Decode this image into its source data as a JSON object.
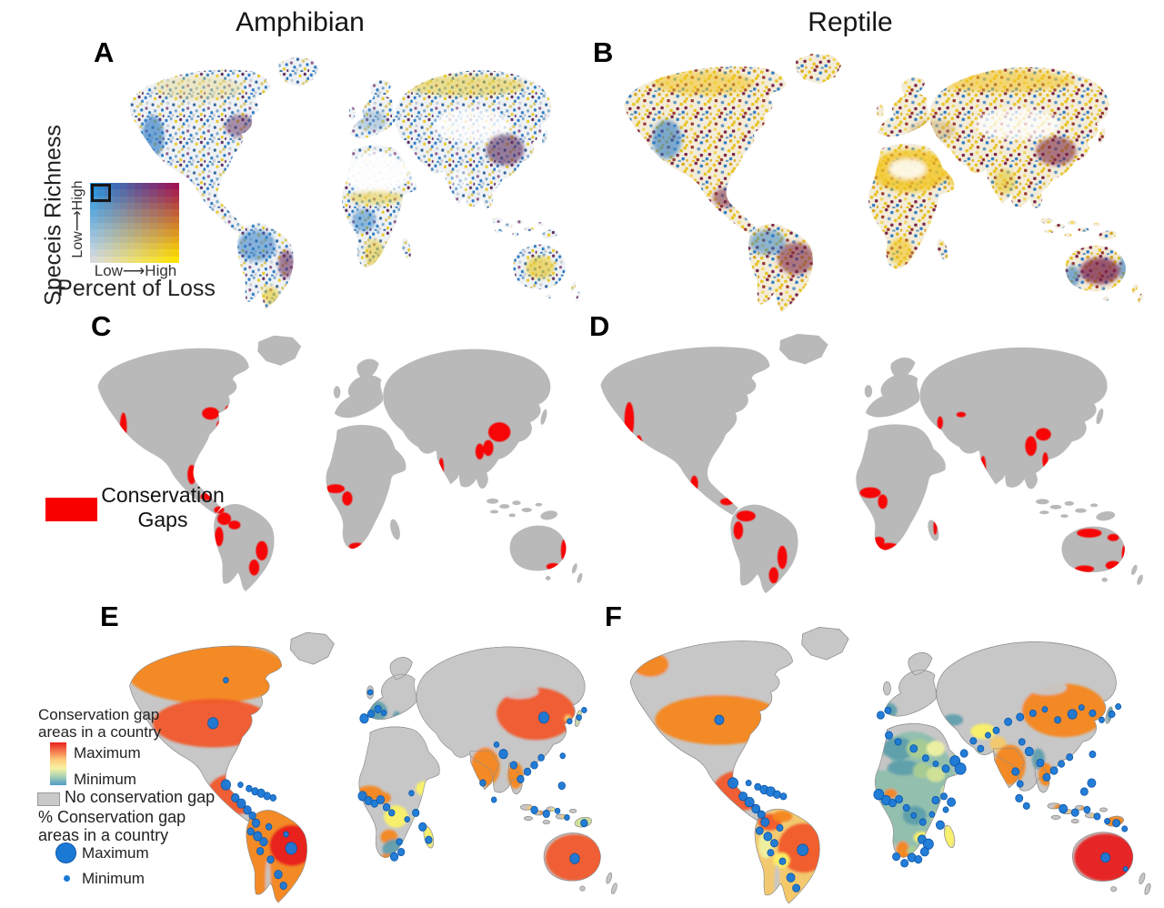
{
  "figure": {
    "columns": [
      {
        "title": "Amphibian"
      },
      {
        "title": "Reptile"
      }
    ],
    "panels": [
      {
        "letter": "A",
        "subject": "Amphibian",
        "content": "species richness vs percent of loss bivariate map"
      },
      {
        "letter": "B",
        "subject": "Reptile",
        "content": "species richness vs percent of loss bivariate map"
      },
      {
        "letter": "C",
        "subject": "Amphibian",
        "content": "conservation gaps map"
      },
      {
        "letter": "D",
        "subject": "Reptile",
        "content": "conservation gaps map"
      },
      {
        "letter": "E",
        "subject": "Amphibian",
        "content": "conservation gap areas by country with % bubbles"
      },
      {
        "letter": "F",
        "subject": "Reptile",
        "content": "conservation gap areas by country with % bubbles"
      }
    ]
  },
  "bivariate_legend": {
    "y_axis_label": "Speceis Richness",
    "y_scale_label": "Low⟶High",
    "x_scale_label": "Low⟶High",
    "x_axis_label": "Percent of Loss",
    "grid_size": 12,
    "corner_colors": {
      "top_left": "#1F8ED8",
      "top_right": "#9E1455",
      "bottom_left": "#D8DBDE",
      "bottom_right": "#FFE205"
    }
  },
  "gap_legend": {
    "line1": "Conservation",
    "line2": "Gaps",
    "swatch_color": "#F80000"
  },
  "country_gap_legend": {
    "line1": "Conservation gap",
    "line2": "areas in a country",
    "max_label": "Maximum",
    "min_label": "Minimum",
    "gradient_stops": [
      "#E8201D",
      "#F4764A",
      "#FDC878",
      "#F7F2A2",
      "#A9D0B4",
      "#4E9AC8"
    ],
    "no_gap_label": "No conservation gap",
    "no_gap_color": "#C9C9C9"
  },
  "percent_gap_legend": {
    "line1": "% Conservation gap",
    "line2": "areas in a country",
    "max_label": "Maximum",
    "min_label": "Minimum",
    "bubble_color": "#1B79D6"
  },
  "map_colors": {
    "land_gray": "#B9B9B9",
    "country_no_gap": "#C7C7C7",
    "gap_red": "#F80000",
    "bubble_blue": "#1B79D6",
    "choropleth": {
      "max_red": "#E8201E",
      "orange_red": "#F1582B",
      "orange": "#F5861F",
      "sand": "#F6C96B",
      "yellow": "#FBF167",
      "pale_yellow": "#EFF2A2",
      "yellow_green": "#D3E397",
      "green": "#A9CE92",
      "soft_teal": "#8FBFAD",
      "teal": "#5F9FAC"
    }
  }
}
